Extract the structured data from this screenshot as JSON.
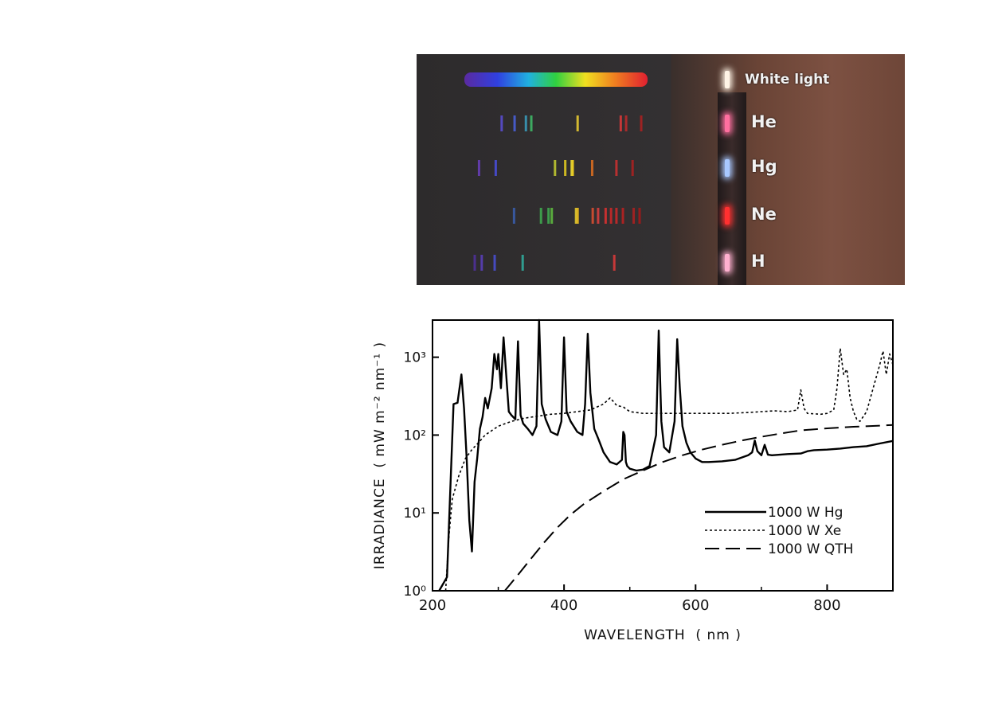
{
  "spectra": {
    "rows": [
      {
        "label": "White light",
        "type": "continuum",
        "lamp_color": "#fff4e6",
        "lines": []
      },
      {
        "label": "He",
        "type": "lines",
        "lamp_color": "#ff6fa0",
        "lines": [
          {
            "wl": 447,
            "color": "#5a4fd8"
          },
          {
            "wl": 471,
            "color": "#4a63e0"
          },
          {
            "wl": 492,
            "color": "#39a0c0"
          },
          {
            "wl": 502,
            "color": "#3fbf6a"
          },
          {
            "wl": 588,
            "color": "#f0d030"
          },
          {
            "wl": 668,
            "color": "#e03a3a"
          },
          {
            "wl": 678,
            "color": "#c02a2a"
          },
          {
            "wl": 706,
            "color": "#b02020"
          }
        ]
      },
      {
        "label": "Hg",
        "type": "lines",
        "lamp_color": "#a8c8ff",
        "lines": [
          {
            "wl": 405,
            "color": "#6a40c0"
          },
          {
            "wl": 436,
            "color": "#4a4fe0"
          },
          {
            "wl": 546,
            "color": "#c8d030"
          },
          {
            "wl": 565,
            "color": "#e8d020"
          },
          {
            "wl": 577,
            "color": "#f0e040"
          },
          {
            "wl": 579,
            "color": "#f0d020"
          },
          {
            "wl": 615,
            "color": "#e07020"
          },
          {
            "wl": 660,
            "color": "#d03030"
          },
          {
            "wl": 690,
            "color": "#b02020"
          }
        ]
      },
      {
        "label": "Ne",
        "type": "lines",
        "lamp_color": "#ff3030",
        "lines": [
          {
            "wl": 470,
            "color": "#3a5fb0"
          },
          {
            "wl": 520,
            "color": "#40b050"
          },
          {
            "wl": 534,
            "color": "#40b050"
          },
          {
            "wl": 540,
            "color": "#60c040"
          },
          {
            "wl": 585,
            "color": "#e8d030"
          },
          {
            "wl": 588,
            "color": "#f0c020"
          },
          {
            "wl": 616,
            "color": "#e05030"
          },
          {
            "wl": 626,
            "color": "#e04040"
          },
          {
            "wl": 640,
            "color": "#e03030"
          },
          {
            "wl": 650,
            "color": "#d02828"
          },
          {
            "wl": 660,
            "color": "#d02828"
          },
          {
            "wl": 672,
            "color": "#c02020"
          },
          {
            "wl": 692,
            "color": "#b02020"
          },
          {
            "wl": 703,
            "color": "#a81818"
          }
        ]
      },
      {
        "label": "H",
        "type": "lines",
        "lamp_color": "#ffb0d0",
        "lines": [
          {
            "wl": 397,
            "color": "#5030a0"
          },
          {
            "wl": 410,
            "color": "#5a3fc0"
          },
          {
            "wl": 434,
            "color": "#4a50d8"
          },
          {
            "wl": 486,
            "color": "#30b0a0"
          },
          {
            "wl": 656,
            "color": "#e03a3a"
          }
        ]
      }
    ]
  },
  "chart_data": {
    "type": "line",
    "xlabel": "WAVELENGTH  ( nm )",
    "ylabel": "IRRADIANCE  ( mW m⁻² nm⁻¹ )",
    "xlim": [
      200,
      900
    ],
    "ylim": [
      1,
      3000
    ],
    "yscale": "log",
    "xticks": [
      {
        "value": 200,
        "label": "200"
      },
      {
        "value": 400,
        "label": "400"
      },
      {
        "value": 600,
        "label": "600"
      },
      {
        "value": 800,
        "label": "800"
      }
    ],
    "yticks": [
      {
        "value": 1,
        "label": "10⁰"
      },
      {
        "value": 10,
        "label": "10¹"
      },
      {
        "value": 100,
        "label": "10²"
      },
      {
        "value": 1000,
        "label": "10³"
      }
    ],
    "legend_position": "bottom-right",
    "series": [
      {
        "name": "1000 W Hg",
        "dash": "solid",
        "x": [
          210,
          222,
          232,
          238,
          244,
          248,
          252,
          256,
          260,
          264,
          268,
          272,
          276,
          280,
          284,
          290,
          294,
          298,
          300,
          304,
          308,
          312,
          316,
          320,
          326,
          330,
          334,
          338,
          345,
          352,
          358,
          362,
          366,
          372,
          380,
          390,
          396,
          400,
          404,
          410,
          420,
          428,
          432,
          436,
          440,
          446,
          452,
          460,
          470,
          480,
          488,
          490,
          492,
          494,
          496,
          500,
          510,
          520,
          530,
          540,
          544,
          548,
          552,
          560,
          568,
          572,
          576,
          580,
          586,
          592,
          600,
          610,
          620,
          640,
          660,
          680,
          686,
          690,
          694,
          700,
          705,
          710,
          716,
          740,
          760,
          770,
          780,
          800,
          820,
          840,
          860,
          880,
          900
        ],
        "y": [
          1.0,
          1.5,
          250,
          260,
          600,
          220,
          50,
          8,
          3.2,
          25,
          50,
          120,
          170,
          300,
          220,
          400,
          1100,
          700,
          1100,
          400,
          1800,
          600,
          200,
          180,
          160,
          1600,
          180,
          140,
          120,
          100,
          130,
          3000,
          250,
          160,
          110,
          100,
          150,
          1800,
          200,
          150,
          110,
          100,
          250,
          2000,
          350,
          120,
          90,
          60,
          45,
          42,
          48,
          110,
          100,
          45,
          40,
          37,
          35,
          36,
          40,
          100,
          2200,
          150,
          70,
          60,
          150,
          1700,
          400,
          130,
          80,
          60,
          50,
          45,
          45,
          46,
          48,
          55,
          60,
          85,
          62,
          55,
          75,
          56,
          55,
          57,
          58,
          62,
          64,
          65,
          67,
          70,
          72,
          78,
          84
        ]
      },
      {
        "name": "1000 W Xe",
        "dash": "dotted",
        "x": [
          220,
          225,
          230,
          240,
          250,
          260,
          270,
          280,
          300,
          320,
          340,
          360,
          380,
          400,
          420,
          440,
          460,
          470,
          475,
          480,
          490,
          500,
          520,
          550,
          600,
          650,
          680,
          700,
          720,
          740,
          755,
          760,
          765,
          770,
          790,
          800,
          810,
          815,
          820,
          825,
          830,
          835,
          840,
          845,
          850,
          860,
          870,
          880,
          885,
          890,
          895,
          900
        ],
        "y": [
          1.0,
          5,
          15,
          30,
          50,
          65,
          80,
          100,
          130,
          150,
          165,
          175,
          185,
          190,
          200,
          210,
          250,
          300,
          270,
          240,
          230,
          200,
          190,
          190,
          190,
          190,
          195,
          200,
          205,
          200,
          210,
          380,
          220,
          190,
          185,
          190,
          210,
          400,
          1300,
          600,
          700,
          300,
          200,
          160,
          150,
          200,
          400,
          800,
          1200,
          600,
          1100,
          800
        ]
      },
      {
        "name": "1000 W QTH",
        "dash": "dashed",
        "x": [
          310,
          330,
          350,
          370,
          390,
          410,
          430,
          460,
          490,
          520,
          550,
          580,
          610,
          640,
          670,
          700,
          730,
          760,
          800,
          840,
          880,
          900
        ],
        "y": [
          1.0,
          1.6,
          2.6,
          4.2,
          6.5,
          9.5,
          13,
          19,
          27,
          35,
          45,
          55,
          65,
          75,
          85,
          95,
          105,
          115,
          122,
          128,
          132,
          135
        ]
      }
    ]
  }
}
